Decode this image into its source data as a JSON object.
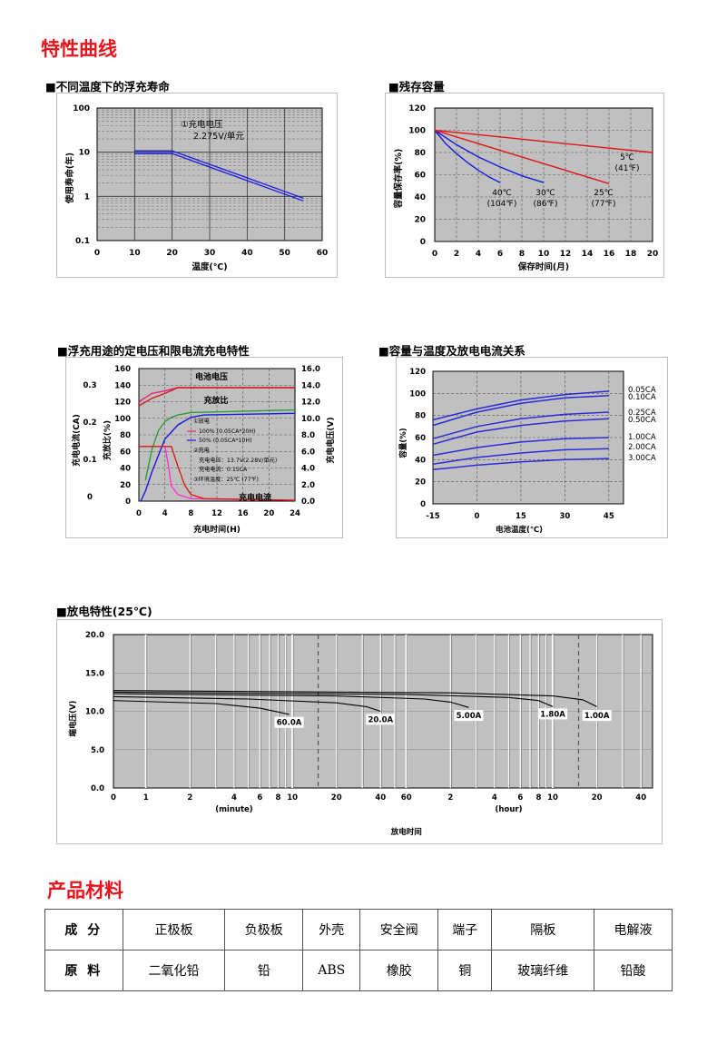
{
  "section_titles": {
    "curves": "特性曲线",
    "materials": "产品材料"
  },
  "chart_data": [
    {
      "id": "float_life",
      "type": "line",
      "title": "■不同温度下的浮充寿命",
      "xlabel": "温度(℃)",
      "ylabel": "使用寿命(年)",
      "xlim": [
        0,
        60
      ],
      "ylim": [
        0.1,
        100
      ],
      "yscale": "log",
      "x_ticks": [
        "0",
        "10",
        "20",
        "30",
        "40",
        "50",
        "60"
      ],
      "y_ticks": [
        "0.1",
        "1",
        "10",
        "100"
      ],
      "annotation": [
        "①充电电压",
        "2.275V/单元"
      ],
      "grid": true,
      "series": [
        {
          "x": [
            10,
            20,
            55
          ],
          "y": [
            10,
            10,
            0.85
          ],
          "color": "#1a1adf"
        }
      ]
    },
    {
      "id": "residual_capacity",
      "type": "line",
      "title": "■残存容量",
      "xlabel": "保存时间(月)",
      "ylabel": "容量保存率(%)",
      "xlim": [
        0,
        20
      ],
      "ylim": [
        0,
        120
      ],
      "x_ticks": [
        "0",
        "2",
        "4",
        "6",
        "8",
        "10",
        "12",
        "14",
        "16",
        "18",
        "20"
      ],
      "y_ticks": [
        "0",
        "20",
        "40",
        "60",
        "80",
        "100",
        "120"
      ],
      "grid": true,
      "series": [
        {
          "label": [
            "40℃",
            "(104℉)"
          ],
          "color": "#1a1adf",
          "x": [
            0,
            1,
            2,
            3,
            4,
            5,
            6
          ],
          "y": [
            100,
            88,
            79,
            71,
            64,
            58,
            53
          ]
        },
        {
          "label": [
            "30℃",
            "(86℉)"
          ],
          "color": "#1a1adf",
          "x": [
            0,
            2,
            4,
            6,
            8,
            10
          ],
          "y": [
            100,
            87,
            76,
            67,
            59,
            53
          ]
        },
        {
          "label": [
            "25℃",
            "(77℉)"
          ],
          "color": "#e01414",
          "x": [
            0,
            4,
            8,
            12,
            16
          ],
          "y": [
            100,
            88,
            76,
            64,
            52
          ]
        },
        {
          "label": [
            "5℃",
            "(41℉)"
          ],
          "color": "#e01414",
          "x": [
            0,
            5,
            10,
            15,
            20
          ],
          "y": [
            100,
            95,
            90,
            85,
            80
          ]
        }
      ]
    },
    {
      "id": "float_charge",
      "type": "line",
      "title": "■浮充用途的定电压和限电流充电特性",
      "xlabel": "充电时间(H)",
      "ylabel_left_outer": "充电电流(CA)",
      "ylabel_left_inner": "充放比(%)",
      "ylabel_right": "充电电压(V)",
      "xlim": [
        0,
        24
      ],
      "ylim": [
        0,
        160
      ],
      "x_ticks": [
        "0",
        "4",
        "8",
        "12",
        "16",
        "20",
        "24"
      ],
      "y_ticks": [
        "0",
        "20",
        "40",
        "60",
        "80",
        "100",
        "120",
        "140",
        "160"
      ],
      "y_ticks_right": [
        "0.0",
        "2.0",
        "4.0",
        "6.0",
        "8.0",
        "10.0",
        "12.0",
        "14.0",
        "16.0"
      ],
      "y_ticks_ca": [
        "0",
        "0.1",
        "0.2",
        "0.3"
      ],
      "curve_labels": {
        "voltage": "电池电压",
        "ratio": "充放比",
        "current": "充电电流"
      },
      "legend_lines": [
        "①放电",
        "100% (0.05CA*20H)",
        "50% (0.05CA*10H)",
        "②充电",
        "充电电压：13.7V(2.28V/单元)",
        "充电电流：0.15CA",
        "③环境温度：25℃ (77℉)"
      ],
      "grid": true,
      "series": [
        {
          "name": "电池电压",
          "color": "#e8207a",
          "x": [
            0,
            2,
            4,
            6,
            24
          ],
          "y": [
            120,
            130,
            133,
            137,
            137
          ]
        },
        {
          "name": "电池电压",
          "color": "#d81c1c",
          "x": [
            0,
            2,
            4,
            6,
            24
          ],
          "y": [
            115,
            124,
            130,
            137,
            137
          ]
        },
        {
          "name": "充放比",
          "color": "#2a9c3c",
          "x": [
            1,
            2,
            3,
            4,
            5,
            6,
            8,
            24
          ],
          "y": [
            25,
            62,
            85,
            96,
            101,
            104,
            107,
            110
          ]
        },
        {
          "name": "充放比",
          "color": "#1a1adf",
          "x": [
            0.3,
            1,
            2,
            3,
            4,
            6,
            8,
            10,
            24
          ],
          "y": [
            0,
            12,
            35,
            55,
            75,
            92,
            101,
            104,
            106
          ]
        },
        {
          "name": "充电电流",
          "color": "#ff33cc",
          "x": [
            0,
            4,
            4.5,
            5,
            6,
            8,
            24
          ],
          "y": [
            66,
            66,
            45,
            18,
            8,
            3,
            1
          ]
        },
        {
          "name": "充电电流",
          "color": "#d81c1c",
          "x": [
            0,
            5,
            6,
            7,
            8,
            10,
            24
          ],
          "y": [
            66,
            66,
            42,
            20,
            8,
            3,
            1
          ]
        }
      ]
    },
    {
      "id": "capacity_temperature",
      "type": "line",
      "title": "■容量与温度及放电电流关系",
      "xlabel": "电池温度(℃)",
      "ylabel": "容量(%)",
      "xlim": [
        -15,
        50
      ],
      "ylim": [
        0,
        120
      ],
      "x_ticks": [
        "-15",
        "0",
        "15",
        "30",
        "45"
      ],
      "y_ticks": [
        "0",
        "20",
        "40",
        "60",
        "80",
        "100",
        "120"
      ],
      "grid": true,
      "series": [
        {
          "name": "0.05CA",
          "color": "#2b2bd8",
          "x": [
            -15,
            0,
            15,
            30,
            45
          ],
          "y": [
            76,
            86,
            94,
            99,
            102
          ]
        },
        {
          "name": "0.10CA",
          "color": "#2b2bd8",
          "x": [
            -15,
            0,
            15,
            30,
            45
          ],
          "y": [
            71,
            83,
            91,
            96,
            98
          ]
        },
        {
          "name": "0.25CA",
          "color": "#2b2bd8",
          "x": [
            -15,
            0,
            15,
            30,
            45
          ],
          "y": [
            59,
            70,
            77,
            81,
            83
          ]
        },
        {
          "name": "0.50CA",
          "color": "#2b2bd8",
          "x": [
            -15,
            0,
            15,
            30,
            45
          ],
          "y": [
            54,
            65,
            71,
            75,
            77
          ]
        },
        {
          "name": "1.00CA",
          "color": "#2b2bd8",
          "x": [
            -15,
            0,
            15,
            30,
            45
          ],
          "y": [
            44,
            51,
            56,
            59,
            60
          ]
        },
        {
          "name": "2.00CA",
          "color": "#2b2bd8",
          "x": [
            -15,
            0,
            15,
            30,
            45
          ],
          "y": [
            36,
            42,
            46,
            49,
            50
          ]
        },
        {
          "name": "3.00CA",
          "color": "#2b2bd8",
          "x": [
            -15,
            0,
            15,
            30,
            45
          ],
          "y": [
            31,
            35,
            38,
            40,
            41
          ]
        }
      ]
    },
    {
      "id": "discharge",
      "type": "line",
      "title": "■放电特性(25℃)",
      "xlabel": "放电时间",
      "ylabel": "端电压(V)",
      "xscale": "log",
      "xlim_minutes": [
        0.6,
        2880
      ],
      "ylim": [
        0,
        20
      ],
      "y_ticks": [
        "0.0",
        "5.0",
        "10.0",
        "15.0",
        "20.0"
      ],
      "x_ticks_minute": [
        "0",
        "1",
        "2",
        "4",
        "6",
        "8",
        "10",
        "20",
        "40",
        "60"
      ],
      "x_ticks_hour": [
        "2",
        "4",
        "6",
        "8",
        "10",
        "20",
        "40"
      ],
      "x_unit_minute": "(minute)",
      "x_unit_hour": "(hour)",
      "grid": true,
      "series": [
        {
          "name": "60.0A",
          "color": "#000000",
          "x": [
            0.6,
            3,
            6,
            8,
            9.5
          ],
          "y": [
            11.4,
            11.0,
            10.4,
            9.9,
            9.6
          ]
        },
        {
          "name": "20.0A",
          "color": "#000000",
          "x": [
            0.6,
            5,
            20,
            32,
            40
          ],
          "y": [
            11.9,
            11.6,
            11.1,
            10.6,
            10.0
          ]
        },
        {
          "name": "5.00A",
          "color": "#000000",
          "x": [
            0.6,
            20,
            80,
            120,
            160
          ],
          "y": [
            12.3,
            12.0,
            11.6,
            11.2,
            10.5
          ]
        },
        {
          "name": "1.80A",
          "color": "#000000",
          "x": [
            0.6,
            60,
            300,
            480,
            600
          ],
          "y": [
            12.5,
            12.2,
            11.8,
            11.4,
            10.6
          ]
        },
        {
          "name": "1.00A",
          "color": "#000000",
          "x": [
            0.6,
            120,
            600,
            960,
            1200
          ],
          "y": [
            12.7,
            12.4,
            12.0,
            11.5,
            10.6
          ]
        }
      ]
    }
  ],
  "materials": {
    "header": [
      "成 分",
      "正极板",
      "负极板",
      "外壳",
      "安全阀",
      "端子",
      "隔板",
      "电解液"
    ],
    "row": [
      "原 料",
      "二氧化铅",
      "铅",
      "ABS",
      "橡胶",
      "铜",
      "玻璃纤维",
      "铅酸"
    ]
  }
}
